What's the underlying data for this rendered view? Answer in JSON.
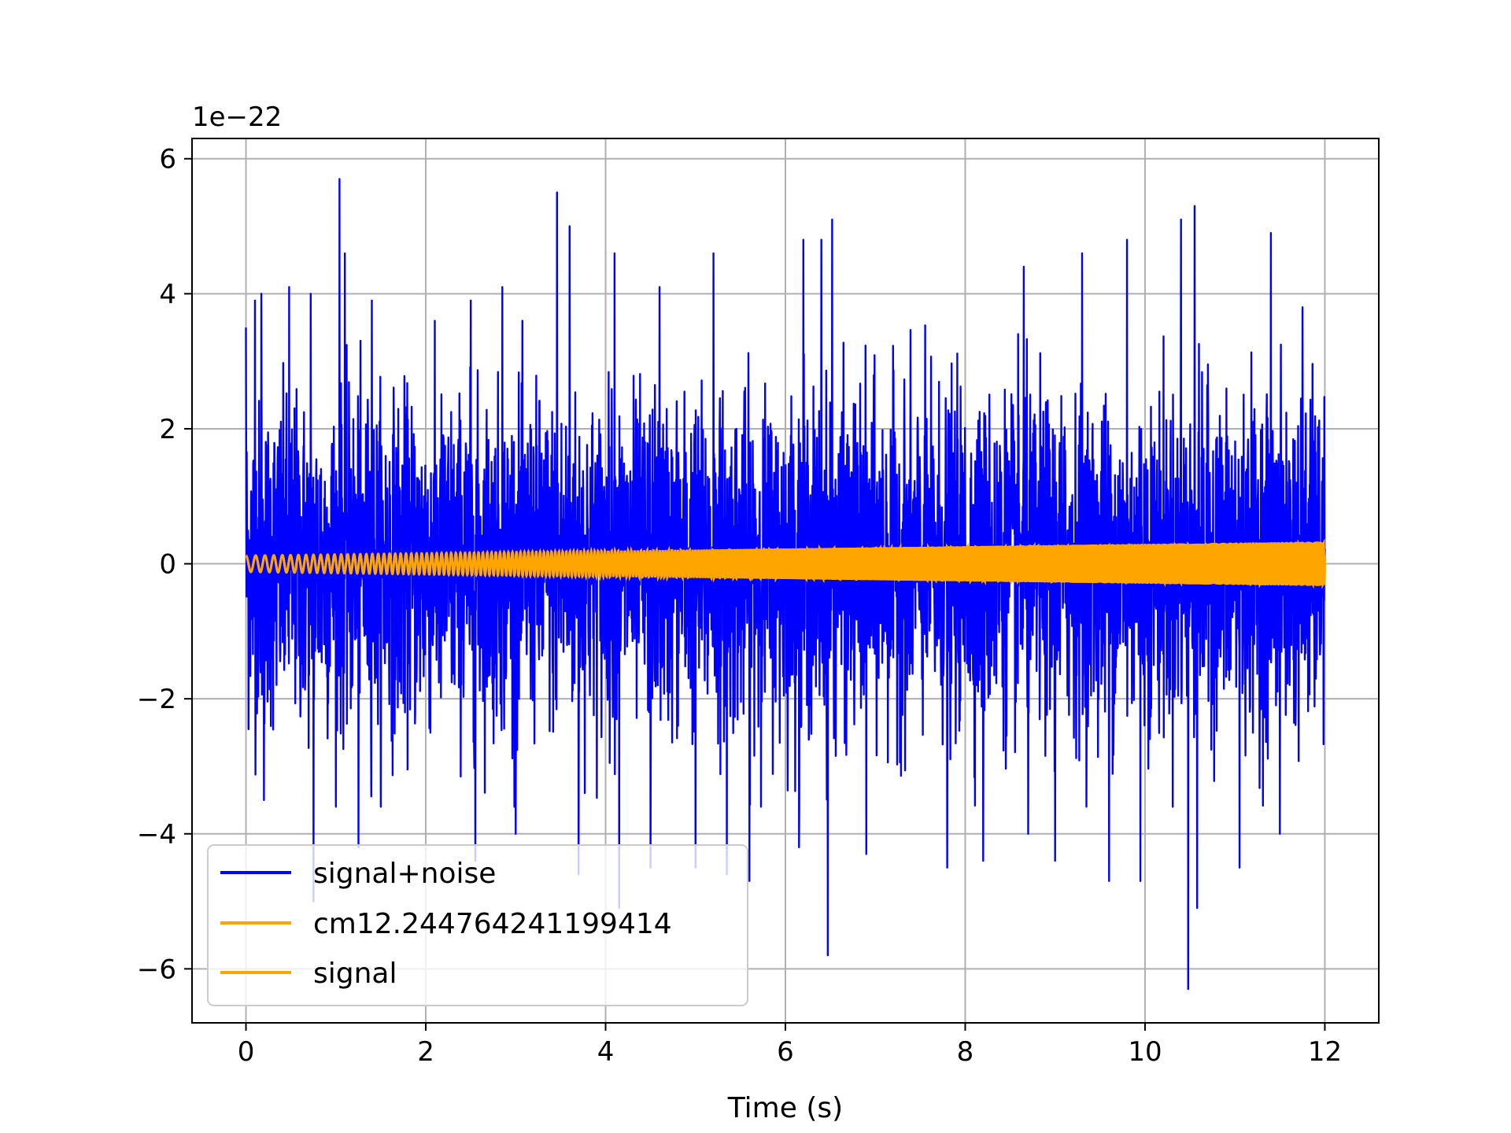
{
  "chart_data": {
    "type": "line",
    "title": "",
    "xlabel": "Time (s)",
    "ylabel": "",
    "y_scale_label": "1e−22",
    "xlim": [
      -0.6,
      12.6
    ],
    "ylim": [
      -6.8,
      6.3
    ],
    "xticks": [
      0,
      2,
      4,
      6,
      8,
      10,
      12
    ],
    "yticks": [
      -6,
      -4,
      -2,
      0,
      2,
      4,
      6
    ],
    "xtick_labels": [
      "0",
      "2",
      "4",
      "6",
      "8",
      "10",
      "12"
    ],
    "ytick_labels": [
      "−6",
      "−4",
      "−2",
      "0",
      "2",
      "4",
      "6"
    ],
    "grid": true,
    "legend_position": "lower-left",
    "series": [
      {
        "name": "signal+noise",
        "color": "#0000ff",
        "kind": "noisy-trace",
        "x_range": [
          0,
          12
        ],
        "typical_envelope": [
          -2.5,
          2.5
        ],
        "spikes": [
          [
            0.0,
            3.5
          ],
          [
            0.1,
            3.9
          ],
          [
            0.17,
            4.0
          ],
          [
            0.48,
            4.1
          ],
          [
            0.72,
            4.0
          ],
          [
            1.04,
            5.7
          ],
          [
            1.1,
            4.6
          ],
          [
            1.4,
            3.9
          ],
          [
            2.5,
            3.9
          ],
          [
            2.85,
            4.1
          ],
          [
            3.46,
            5.5
          ],
          [
            3.6,
            5.0
          ],
          [
            4.1,
            4.6
          ],
          [
            4.6,
            4.1
          ],
          [
            5.2,
            4.6
          ],
          [
            5.6,
            4.7
          ],
          [
            6.2,
            4.8
          ],
          [
            6.4,
            4.8
          ],
          [
            6.52,
            5.1
          ],
          [
            7.8,
            4.7
          ],
          [
            8.65,
            4.4
          ],
          [
            9.3,
            4.6
          ],
          [
            9.8,
            4.8
          ],
          [
            10.4,
            5.1
          ],
          [
            10.55,
            5.3
          ],
          [
            11.4,
            4.9
          ],
          [
            11.75,
            3.8
          ],
          [
            0.2,
            -3.5
          ],
          [
            0.75,
            -5.0
          ],
          [
            1.25,
            -4.2
          ],
          [
            2.55,
            -4.4
          ],
          [
            3.0,
            -4.0
          ],
          [
            3.7,
            -4.6
          ],
          [
            4.15,
            -5.1
          ],
          [
            4.5,
            -4.5
          ],
          [
            5.0,
            -4.5
          ],
          [
            5.35,
            -4.6
          ],
          [
            5.6,
            -4.7
          ],
          [
            6.15,
            -4.2
          ],
          [
            6.47,
            -5.8
          ],
          [
            6.9,
            -4.3
          ],
          [
            7.8,
            -4.5
          ],
          [
            8.2,
            -4.4
          ],
          [
            8.7,
            -4.0
          ],
          [
            9.0,
            -4.4
          ],
          [
            9.6,
            -4.7
          ],
          [
            9.95,
            -4.7
          ],
          [
            10.48,
            -6.3
          ],
          [
            10.58,
            -5.1
          ],
          [
            11.05,
            -4.5
          ],
          [
            11.5,
            -4.0
          ]
        ]
      },
      {
        "name": "cm12.244764241199414",
        "color": "#ffa500",
        "kind": "chirp",
        "x_range": [
          0,
          12
        ],
        "amplitude_start": 0.12,
        "amplitude_end": 0.33
      },
      {
        "name": "signal",
        "color": "#ffa500",
        "kind": "chirp",
        "x_range": [
          0,
          12
        ],
        "amplitude_start": 0.12,
        "amplitude_end": 0.33
      }
    ]
  }
}
